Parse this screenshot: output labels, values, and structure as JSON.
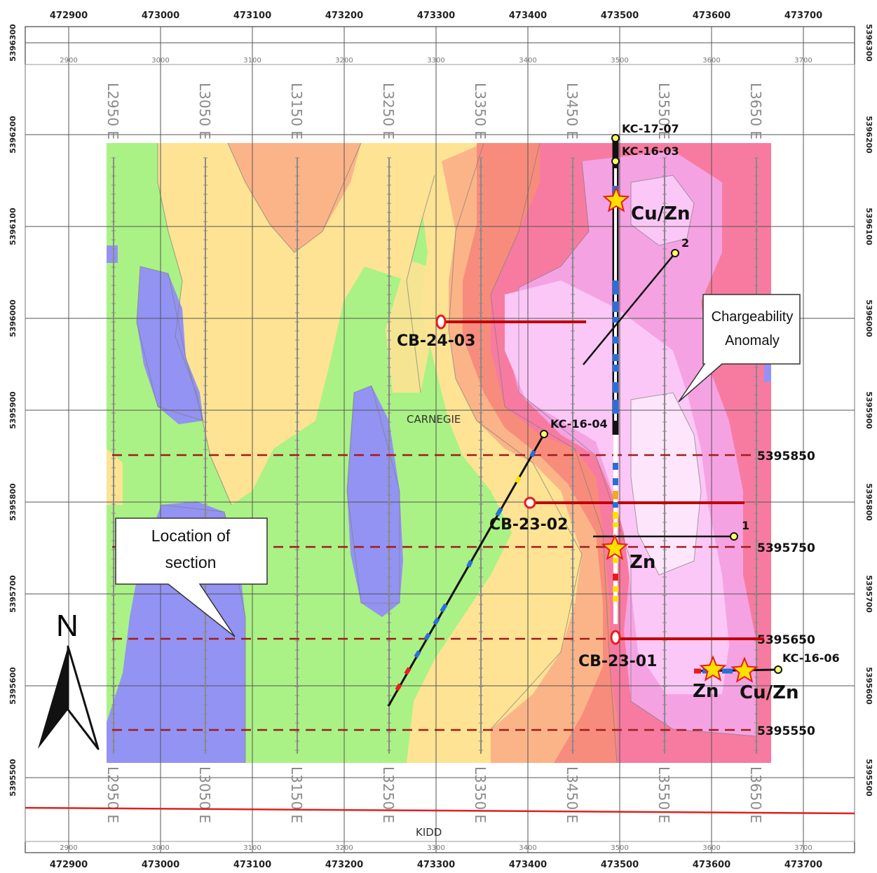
{
  "map": {
    "easting_labels": [
      "472900",
      "473000",
      "473100",
      "473200",
      "473300",
      "473400",
      "473500",
      "473600",
      "473700"
    ],
    "northing_labels": [
      "5396300",
      "5396200",
      "5396100",
      "5396000",
      "5395900",
      "5395800",
      "5395700",
      "5395600",
      "5395500"
    ],
    "local_grid_labels": [
      "2900",
      "3000",
      "3100",
      "3200",
      "3300",
      "3400",
      "3500",
      "3600",
      "3700"
    ],
    "survey_lines": [
      "L2950 E",
      "L3050 E",
      "L3150 E",
      "L3250 E",
      "L3350 E",
      "L3450 E",
      "L3550 E",
      "L3650 E"
    ],
    "place_names": {
      "carnegie": "CARNEGIE",
      "kidd": "KIDD"
    },
    "section_lines": [
      {
        "label": "5395850"
      },
      {
        "label": "5395750"
      },
      {
        "label": "5395650"
      },
      {
        "label": "5395550"
      }
    ],
    "holes": {
      "kc1707": "KC-17-07",
      "kc1603": "KC-16-03",
      "kc1604": "KC-16-04",
      "kc1606": "KC-16-06",
      "cb2403": "CB-24-03",
      "cb2302": "CB-23-02",
      "cb2301": "CB-23-01",
      "num1": "1",
      "num2": "2"
    },
    "mineral_labels": {
      "top_cuzn": "Cu/Zn",
      "mid_zn": "Zn",
      "lower_zn": "Zn",
      "lower_cuzn": "Cu/Zn"
    },
    "callouts": {
      "chargeability_line1": "Chargeability",
      "chargeability_line2": "Anomaly",
      "location_line1": "Location of",
      "location_line2": "section"
    },
    "north_arrow": "N",
    "colors": {
      "blue": "#9393f3",
      "green": "#aaf285",
      "yellow": "#fde393",
      "orange": "#fbb488",
      "salmon": "#f88c7c",
      "pink": "#f77ba0",
      "magenta": "#f5a2e3",
      "light_pink": "#fbc7f6",
      "drill_red": "#c00000",
      "section_red": "#a01c1c",
      "star": "#ffe000",
      "star_outline": "#e81c1c"
    }
  }
}
